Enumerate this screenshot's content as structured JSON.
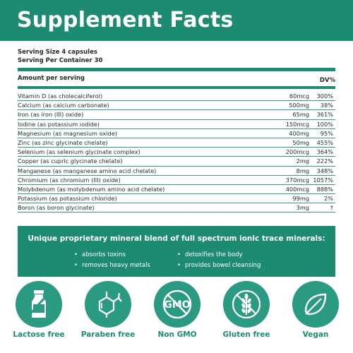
{
  "header": {
    "title": "Supplement Facts"
  },
  "serving": {
    "size": "Serving Size 4 capsules",
    "per_container": "Serving Per Container 30"
  },
  "table": {
    "amount_header": "Amount per serving",
    "dv_header": "DV%",
    "rows": [
      {
        "name": "Vitamin D (as cholecalciferol)",
        "amount": "60mcg",
        "dv": "300%"
      },
      {
        "name": "Calcium (as calcium carbonate)",
        "amount": "500mg",
        "dv": "38%"
      },
      {
        "name": "Iron (as iron (III) oxide)",
        "amount": "65mg",
        "dv": "361%"
      },
      {
        "name": "Iodine (as potassium iodide)",
        "amount": "150mcg",
        "dv": "100%"
      },
      {
        "name": "Magnesium (as magnesium oxide)",
        "amount": "400mg",
        "dv": "95%"
      },
      {
        "name": "Zinc (as zinc glycinate chelate)",
        "amount": "50mg",
        "dv": "455%"
      },
      {
        "name": "Selenium (as selenium glycinate complex)",
        "amount": "200mcg",
        "dv": "364%"
      },
      {
        "name": "Copper (as cupric glycinate chelate)",
        "amount": "2mg",
        "dv": "222%"
      },
      {
        "name": "Manganese (as manganese amino acid chelate)",
        "amount": "8mg",
        "dv": "348%"
      },
      {
        "name": "Chromium (as chromium (III) oxide)",
        "amount": "370mcg",
        "dv": "1057%"
      },
      {
        "name": "Molybdenum (as molybdenum amino acid chelate)",
        "amount": "400mcg",
        "dv": "888%"
      },
      {
        "name": "Potassium (as potassium chloride)",
        "amount": "99mg",
        "dv": "2%"
      },
      {
        "name": "Boron (as boron glycinate)",
        "amount": "3mg",
        "dv": "†"
      }
    ]
  },
  "blend": {
    "title": "Unique proprietary mineral blend of full spectrum ionic trace minerals:",
    "bullet": "•",
    "items": [
      "absorbs toxins",
      "removes heavy metals",
      "detoxifies the body",
      "provides bowel cleansing"
    ]
  },
  "badges": [
    {
      "label": "Lactose free",
      "icon": "milk-bottle-icon"
    },
    {
      "label": "Paraben free",
      "icon": "molecule-icon"
    },
    {
      "label": "Non GMO",
      "icon": "gmo-icon",
      "icon_text": "GMO"
    },
    {
      "label": "Gluten free",
      "icon": "wheat-icon"
    },
    {
      "label": "Vegan",
      "icon": "leaf-icon"
    }
  ],
  "colors": {
    "brand_green": "#1d8a72",
    "badge_green": "#2b9a82",
    "text": "#1f2a2a",
    "background": "#ffffff"
  }
}
